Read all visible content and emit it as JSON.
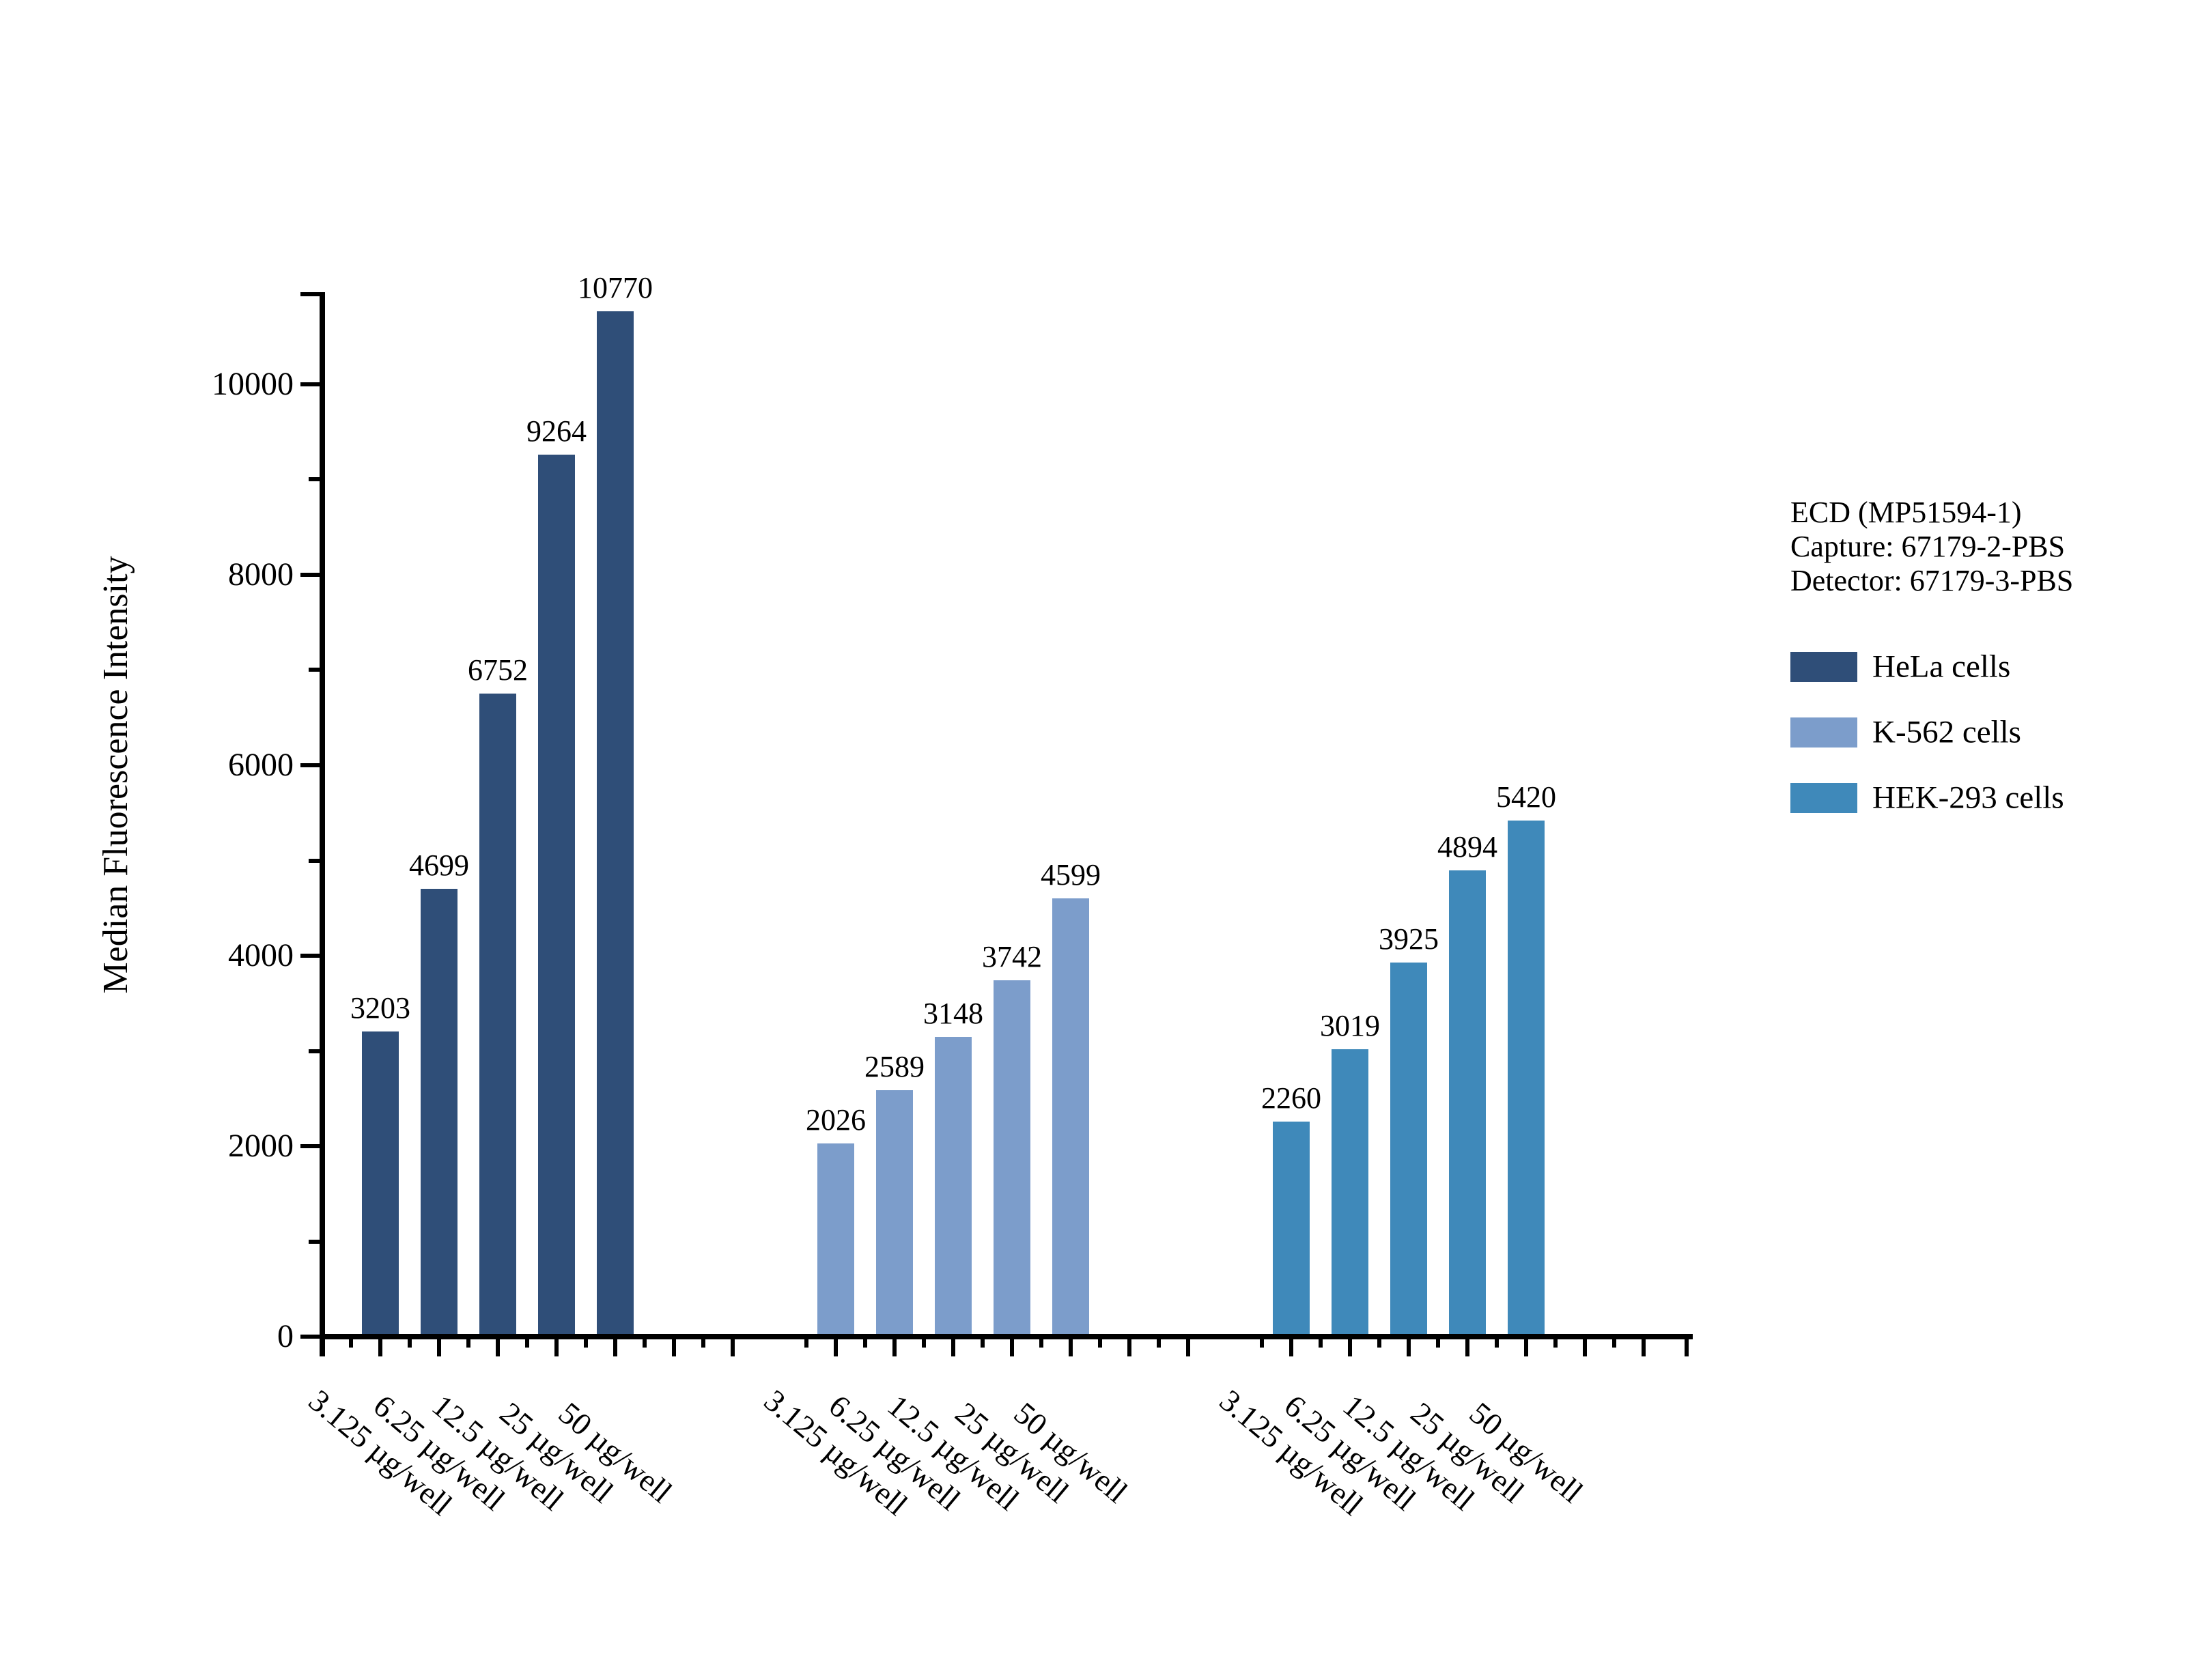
{
  "chart_data": {
    "type": "bar",
    "title": "",
    "xlabel": "",
    "ylabel": "Median Fluorescence Intensity",
    "ylim": [
      0,
      10800
    ],
    "yticks_major": [
      0,
      2000,
      4000,
      6000,
      8000,
      10000
    ],
    "yticks_minor": [
      1000,
      3000,
      5000,
      7000,
      9000
    ],
    "grid": false,
    "legend_position": "right",
    "bar_value_labels": true,
    "axis_color": "#000000",
    "annotation_lines": [
      "ECD (MP51594-1)",
      "Capture: 67179-2-PBS",
      "Detector: 67179-3-PBS"
    ],
    "categories": [
      "3.125 µg/well",
      "6.25 µg/well",
      "12.5 µg/well",
      "25 µg/well",
      "50 µg/well"
    ],
    "series": [
      {
        "name": "HeLa cells",
        "color": "#2F4E78",
        "values": [
          3203,
          4699,
          6752,
          9264,
          10770
        ]
      },
      {
        "name": "K-562 cells",
        "color": "#7C9DCB",
        "values": [
          2026,
          2589,
          3148,
          3742,
          4599
        ]
      },
      {
        "name": "HEK-293 cells",
        "color": "#3F89BA",
        "values": [
          2260,
          3019,
          3925,
          4894,
          5420
        ]
      }
    ]
  }
}
